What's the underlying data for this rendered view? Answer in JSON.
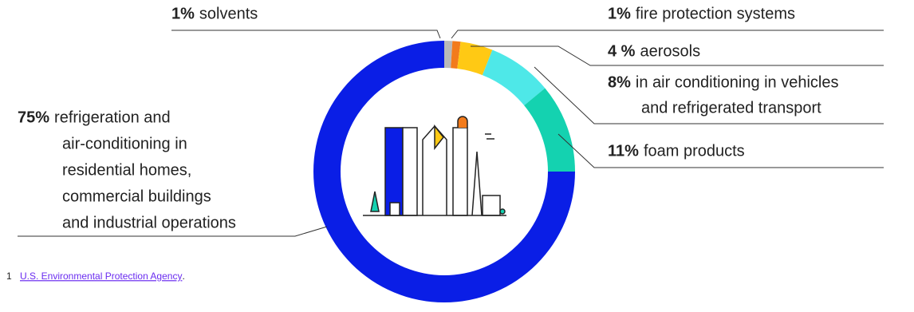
{
  "chart_data": {
    "type": "pie",
    "donut": true,
    "categories": [
      [
        "solvents"
      ],
      [
        "fire protection systems"
      ],
      [
        "aerosols"
      ],
      [
        "in air conditioning in vehicles",
        "and refrigerated transport"
      ],
      [
        "foam products"
      ],
      [
        "refrigeration and",
        "air-conditioning in",
        "residential homes,",
        "commercial buildings",
        "and industrial operations"
      ]
    ],
    "values": [
      1,
      1,
      4,
      8,
      11,
      75
    ],
    "value_labels": [
      "1%",
      "1%",
      "4 %",
      "8%",
      "11%",
      "75%"
    ],
    "colors": [
      "#b9b9b9",
      "#f27b1c",
      "#ffc914",
      "#4ee8e8",
      "#14d2b0",
      "#0a1ee6"
    ]
  },
  "footnote_marker": "1",
  "footnote_link": "U.S. Environmental Protection Agency",
  "footnote_end": "."
}
